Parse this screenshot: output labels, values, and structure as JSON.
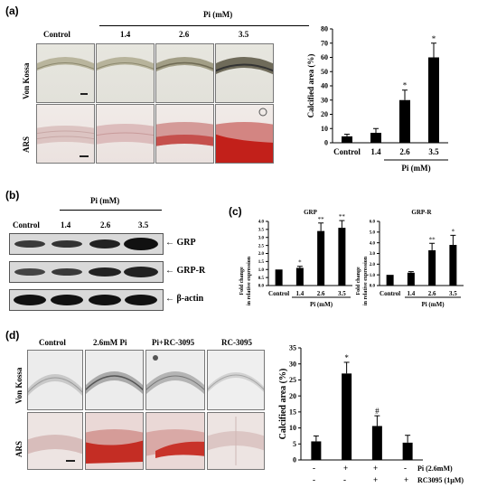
{
  "panel_a": {
    "label": "(a)",
    "group_header": "Pi (mM)",
    "columns": [
      "Control",
      "1.4",
      "2.6",
      "3.5"
    ],
    "rows": [
      "Von Kossa",
      "ARS"
    ]
  },
  "panel_b": {
    "label": "(b)",
    "group_header": "Pi (mM)",
    "columns": [
      "Control",
      "1.4",
      "2.6",
      "3.5"
    ],
    "blots": [
      "GRP",
      "GRP-R",
      "β-actin"
    ],
    "arrow": "←"
  },
  "panel_c": {
    "label": "(c)",
    "ylabel_line1": "Fold change",
    "ylabel_line2": "in relative expression"
  },
  "panel_d": {
    "label": "(d)",
    "columns": [
      "Control",
      "2.6mM Pi",
      "Pi+RC-3095",
      "RC-3095"
    ],
    "rows": [
      "Von Kossa",
      "ARS"
    ],
    "treatment_rows": [
      {
        "label": "Pi (2.6mM)",
        "signs": [
          "-",
          "+",
          "+",
          "-"
        ]
      },
      {
        "label": "RC3095 (1µM)",
        "signs": [
          "-",
          "-",
          "+",
          "+"
        ]
      }
    ]
  },
  "chart_data": [
    {
      "type": "bar",
      "panel": "a",
      "categories": [
        "Control",
        "1.4",
        "2.6",
        "3.5"
      ],
      "values": [
        4.5,
        7,
        30,
        60
      ],
      "errors": [
        1.5,
        3,
        7,
        10
      ],
      "markers": [
        "",
        "",
        "*",
        "*"
      ],
      "xlabel": "Pi (mM)",
      "ylabel": "Calcified area (%)",
      "ylim": [
        0,
        80
      ],
      "yticks": [
        0,
        10,
        20,
        30,
        40,
        50,
        60,
        70,
        80
      ],
      "color": "#000000"
    },
    {
      "type": "bar",
      "panel": "c",
      "title": "GRP",
      "categories": [
        "Control",
        "1.4",
        "2.6",
        "3.5"
      ],
      "values": [
        1.0,
        1.1,
        3.4,
        3.6
      ],
      "errors": [
        0,
        0.1,
        0.5,
        0.45
      ],
      "markers": [
        "",
        "*",
        "**",
        "**"
      ],
      "xlabel": "Pi (mM)",
      "ylabel": "Fold change in relative expression",
      "ylim": [
        0,
        4.0
      ],
      "yticks": [
        "0.0",
        "0.5",
        "1.0",
        "1.5",
        "2.0",
        "2.5",
        "3.0",
        "3.5",
        "4.0"
      ],
      "color": "#000000"
    },
    {
      "type": "bar",
      "panel": "c",
      "title": "GRP-R",
      "categories": [
        "Control",
        "1.4",
        "2.6",
        "3.5"
      ],
      "values": [
        1.0,
        1.2,
        3.3,
        3.8
      ],
      "errors": [
        0,
        0.1,
        0.65,
        0.9
      ],
      "markers": [
        "",
        "",
        "**",
        "*"
      ],
      "xlabel": "Pi (mM)",
      "ylabel": "Fold change in relative expression",
      "ylim": [
        0,
        6.0
      ],
      "yticks": [
        "0.0",
        "1.0",
        "2.0",
        "3.0",
        "4.0",
        "5.0",
        "6.0"
      ],
      "color": "#000000"
    },
    {
      "type": "bar",
      "panel": "d",
      "categories": [
        "Control",
        "2.6mM Pi",
        "Pi+RC-3095",
        "RC-3095"
      ],
      "values": [
        5.8,
        27,
        10.6,
        5.4
      ],
      "errors": [
        1.7,
        3.5,
        3.2,
        2.3
      ],
      "markers": [
        "",
        "*",
        "#",
        ""
      ],
      "ylabel": "Calcified area (%)",
      "ylim": [
        0,
        35
      ],
      "yticks": [
        0,
        5,
        10,
        15,
        20,
        25,
        30,
        35
      ],
      "color": "#000000"
    }
  ]
}
